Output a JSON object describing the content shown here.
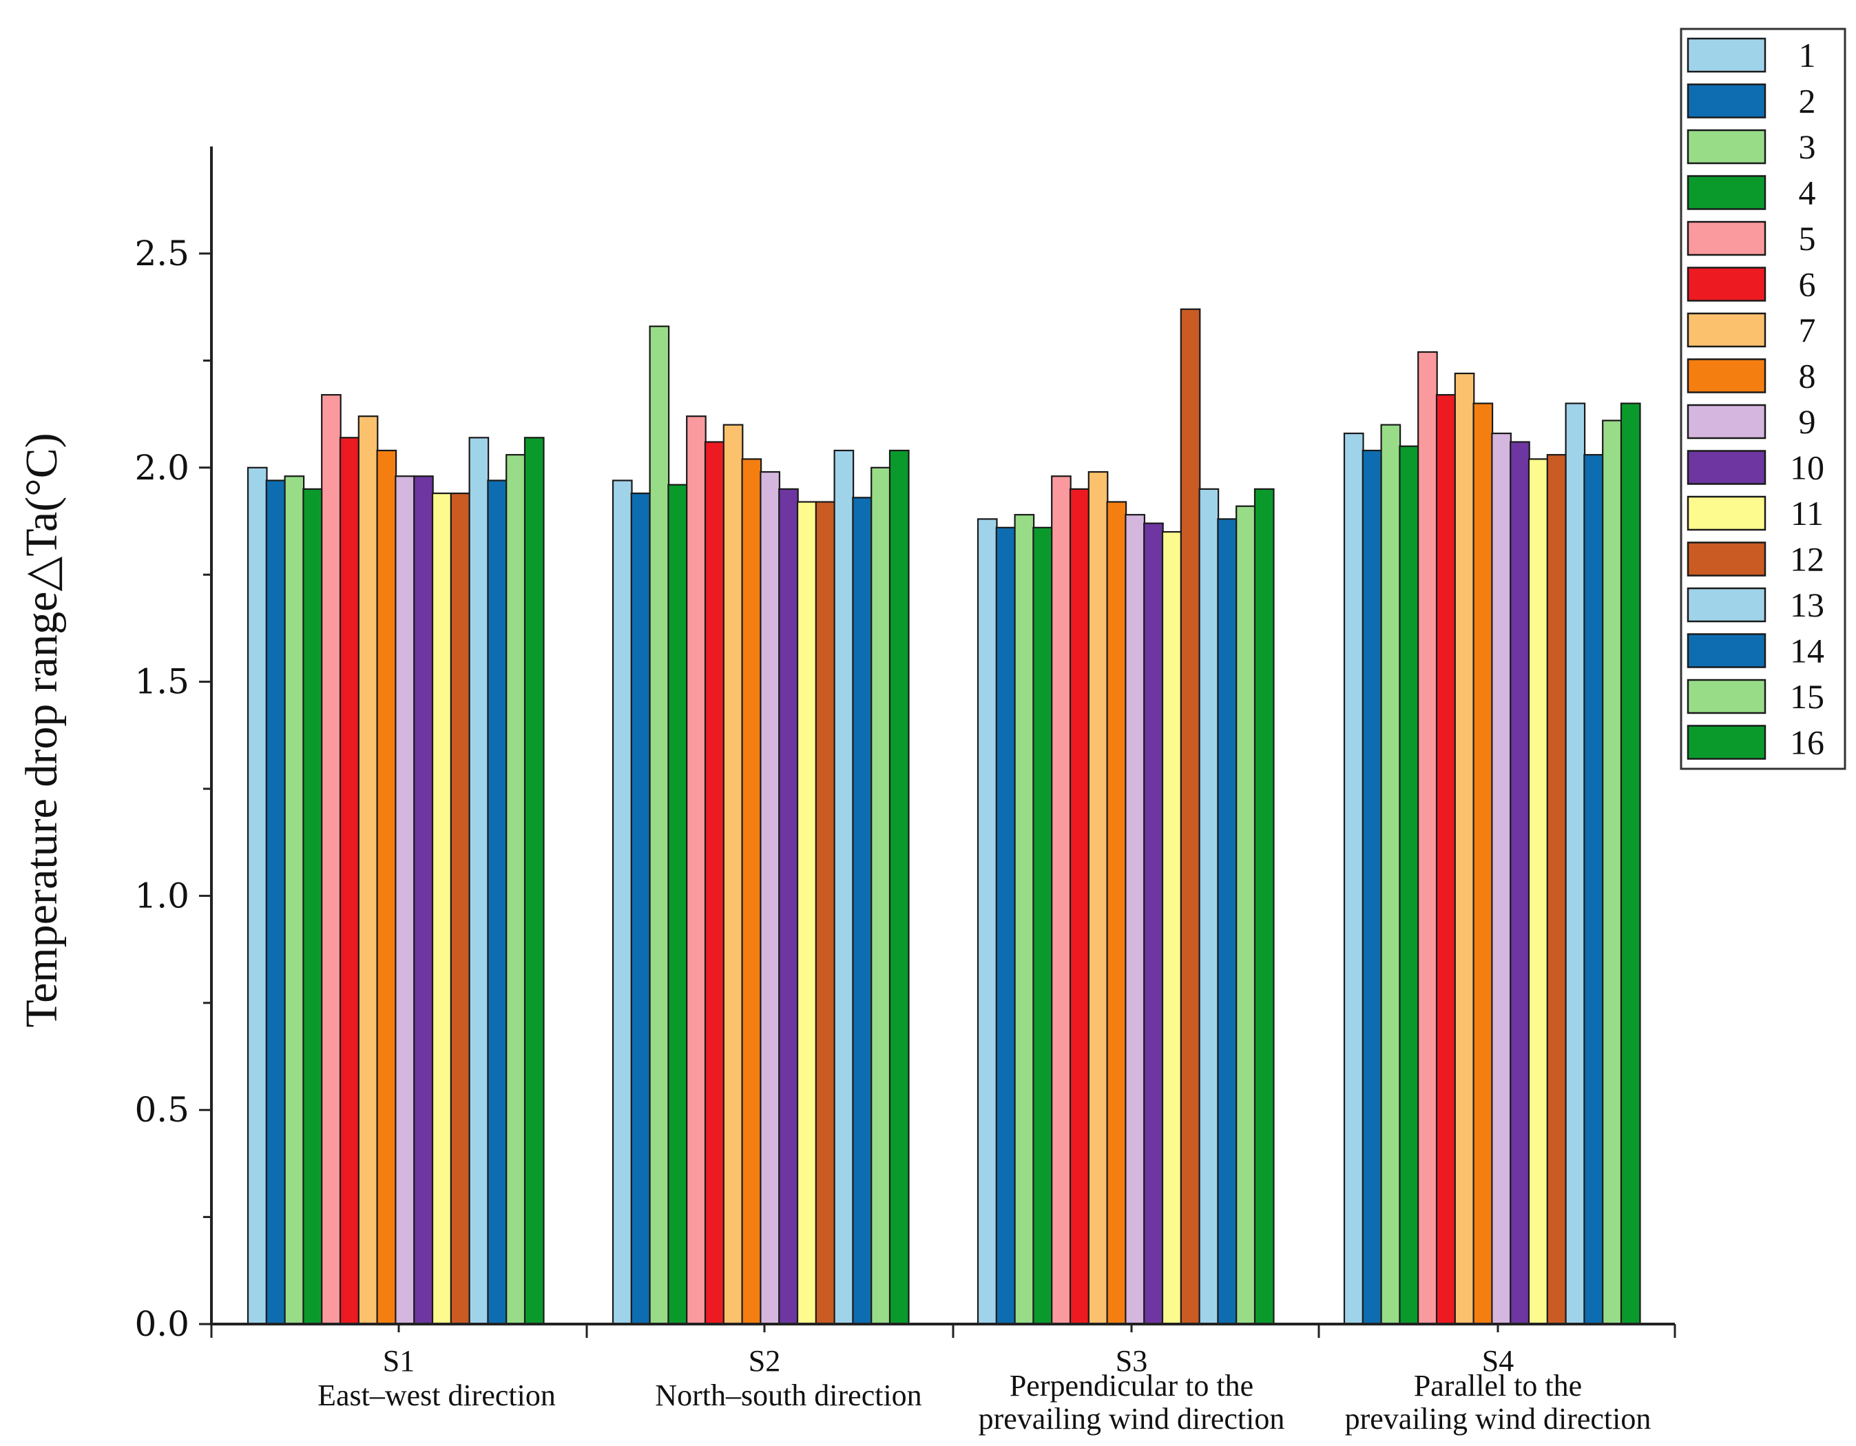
{
  "chart_data": {
    "type": "bar",
    "title": "",
    "xlabel": "",
    "ylabel": "Temperature drop range△Ta(°C)",
    "ylim": [
      0,
      2.75
    ],
    "yticks": [
      "0.0",
      "0.5",
      "1.0",
      "1.5",
      "2.0",
      "2.5"
    ],
    "grid": false,
    "legend_position": "top-right outside",
    "categories": [
      {
        "code": "S1",
        "label": [
          "East–west  direction"
        ]
      },
      {
        "code": "S2",
        "label": [
          "North–south direction"
        ]
      },
      {
        "code": "S3",
        "label": [
          "Perpendicular to the",
          "prevailing wind direction"
        ]
      },
      {
        "code": "S4",
        "label": [
          "Parallel to the",
          "prevailing wind direction"
        ]
      }
    ],
    "series": [
      {
        "name": "1",
        "color": "#9fd3ea",
        "values": [
          2.0,
          1.97,
          1.88,
          2.08
        ]
      },
      {
        "name": "2",
        "color": "#0e6db0",
        "values": [
          1.97,
          1.94,
          1.86,
          2.04
        ]
      },
      {
        "name": "3",
        "color": "#98dc88",
        "values": [
          1.98,
          2.33,
          1.89,
          2.1
        ]
      },
      {
        "name": "4",
        "color": "#0a9a2c",
        "values": [
          1.95,
          1.96,
          1.86,
          2.05
        ]
      },
      {
        "name": "5",
        "color": "#fb9a9e",
        "values": [
          2.17,
          2.12,
          1.98,
          2.27
        ]
      },
      {
        "name": "6",
        "color": "#ee1a21",
        "values": [
          2.07,
          2.06,
          1.95,
          2.17
        ]
      },
      {
        "name": "7",
        "color": "#fbc16d",
        "values": [
          2.12,
          2.1,
          1.99,
          2.22
        ]
      },
      {
        "name": "8",
        "color": "#f57e11",
        "values": [
          2.04,
          2.02,
          1.92,
          2.15
        ]
      },
      {
        "name": "9",
        "color": "#d5b6df",
        "values": [
          1.98,
          1.99,
          1.89,
          2.08
        ]
      },
      {
        "name": "10",
        "color": "#6d36a0",
        "values": [
          1.98,
          1.95,
          1.87,
          2.06
        ]
      },
      {
        "name": "11",
        "color": "#fdfa8e",
        "values": [
          1.94,
          1.92,
          1.85,
          2.02
        ]
      },
      {
        "name": "12",
        "color": "#c95b23",
        "values": [
          1.94,
          1.92,
          2.37,
          2.03
        ]
      },
      {
        "name": "13",
        "color": "#9fd3ea",
        "values": [
          2.07,
          2.04,
          1.95,
          2.15
        ]
      },
      {
        "name": "14",
        "color": "#0e6db0",
        "values": [
          1.97,
          1.93,
          1.88,
          2.03
        ]
      },
      {
        "name": "15",
        "color": "#98dc88",
        "values": [
          2.03,
          2.0,
          1.91,
          2.11
        ]
      },
      {
        "name": "16",
        "color": "#0a9a2c",
        "values": [
          2.07,
          2.04,
          1.95,
          2.15
        ]
      }
    ]
  }
}
